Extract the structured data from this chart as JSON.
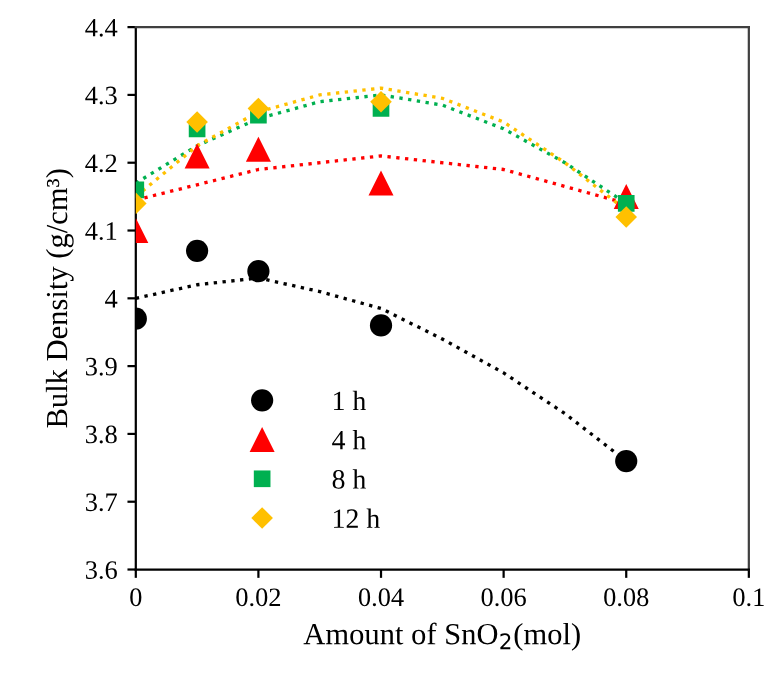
{
  "chart_data": {
    "type": "scatter",
    "xlabel": "Amount of SnO$_{2}$(mol)",
    "ylabel": "Bulk Density (g/cm³)",
    "x": [
      0,
      0.01,
      0.02,
      0.04,
      0.08
    ],
    "series": [
      {
        "name": "1 h",
        "color": "#000000",
        "marker": "circle",
        "values": [
          3.97,
          4.07,
          4.04,
          3.96,
          3.76
        ]
      },
      {
        "name": "4 h",
        "color": "#ff0000",
        "marker": "triangle",
        "values": [
          4.1,
          4.21,
          4.22,
          4.17,
          4.15
        ]
      },
      {
        "name": "8 h",
        "color": "#00b050",
        "marker": "square",
        "values": [
          4.16,
          4.25,
          4.27,
          4.28,
          4.14
        ]
      },
      {
        "name": "12 h",
        "color": "#ffc000",
        "marker": "diamond",
        "values": [
          4.14,
          4.26,
          4.28,
          4.29,
          4.12
        ]
      },
      {
        "type": "line",
        "color": "#000000",
        "line_style": "dotted",
        "x": [
          0,
          0.01,
          0.02,
          0.03,
          0.04,
          0.05,
          0.06,
          0.07,
          0.08
        ],
        "values": [
          4.0,
          4.02,
          4.03,
          4.01,
          3.985,
          3.94,
          3.89,
          3.83,
          3.76
        ]
      },
      {
        "type": "line",
        "color": "#ff0000",
        "line_style": "dotted",
        "x": [
          0,
          0.02,
          0.04,
          0.06,
          0.08
        ],
        "values": [
          4.145,
          4.19,
          4.21,
          4.19,
          4.14
        ]
      },
      {
        "type": "line",
        "color": "#00b050",
        "line_style": "dotted",
        "x": [
          0,
          0.01,
          0.02,
          0.03,
          0.04,
          0.05,
          0.06,
          0.07,
          0.08
        ],
        "values": [
          4.17,
          4.225,
          4.265,
          4.29,
          4.3,
          4.285,
          4.25,
          4.2,
          4.14
        ]
      },
      {
        "type": "line",
        "color": "#ffc000",
        "line_style": "dotted",
        "x": [
          0,
          0.01,
          0.02,
          0.03,
          0.04,
          0.05,
          0.06,
          0.07,
          0.08
        ],
        "values": [
          4.15,
          4.225,
          4.275,
          4.3,
          4.31,
          4.295,
          4.26,
          4.2,
          4.13
        ]
      }
    ],
    "xlim": [
      0,
      0.1
    ],
    "xticks": [
      0,
      0.02,
      0.04,
      0.06,
      0.08,
      0.1
    ],
    "ylim": [
      3.6,
      4.4
    ],
    "yticks": [
      3.6,
      3.7,
      3.8,
      3.9,
      4,
      4.1,
      4.2,
      4.3,
      4.4
    ],
    "grid": false,
    "legend": "bottom left"
  }
}
